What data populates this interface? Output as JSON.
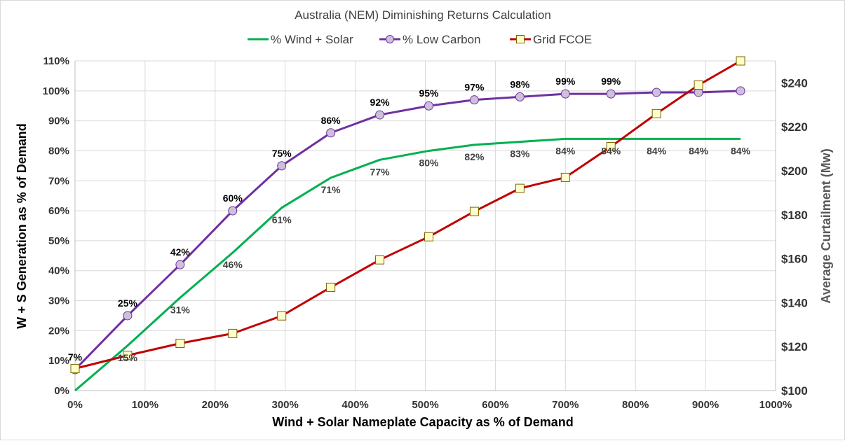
{
  "chart_data": {
    "type": "line",
    "title": "Australia (NEM) Diminishing Returns Calculation",
    "xlabel": "Wind + Solar Nameplate Capacity as % of Demand",
    "ylabel": "W + S Generation as % of Demand",
    "y2label": "Average Curtailment (Mw)",
    "xlim": [
      0,
      1000
    ],
    "ylim": [
      0,
      110
    ],
    "y2lim": [
      100,
      250
    ],
    "x_ticks": [
      "0%",
      "100%",
      "200%",
      "300%",
      "400%",
      "500%",
      "600%",
      "700%",
      "800%",
      "900%",
      "1000%"
    ],
    "y_ticks": [
      "0%",
      "10%",
      "20%",
      "30%",
      "40%",
      "50%",
      "60%",
      "70%",
      "80%",
      "90%",
      "100%",
      "110%"
    ],
    "y2_ticks": [
      "$100",
      "$120",
      "$140",
      "$160",
      "$180",
      "$200",
      "$220",
      "$240"
    ],
    "legend": [
      "% Wind + Solar",
      "% Low Carbon",
      "Grid FCOE"
    ],
    "colors": {
      "wind_solar": "#00b050",
      "low_carbon": "#7030a0",
      "low_carbon_marker": "#ccc0da",
      "fcoe": "#c00000",
      "fcoe_marker": "#ffffcc",
      "grid": "#d9d9d9"
    },
    "series": [
      {
        "name": "% Wind + Solar",
        "axis": "left",
        "x": [
          0,
          75,
          150,
          225,
          295,
          365,
          435,
          505,
          570,
          635,
          700,
          765,
          830,
          890,
          950
        ],
        "values": [
          0,
          15,
          31,
          46,
          61,
          71,
          77,
          80,
          82,
          83,
          84,
          84,
          84,
          84,
          84
        ],
        "labels": [
          "",
          "15%",
          "31%",
          "46%",
          "61%",
          "71%",
          "77%",
          "80%",
          "82%",
          "83%",
          "84%",
          "84%",
          "84%",
          "84%",
          "84%"
        ]
      },
      {
        "name": "% Low Carbon",
        "axis": "left",
        "x": [
          0,
          75,
          150,
          225,
          295,
          365,
          435,
          505,
          570,
          635,
          700,
          765,
          830,
          890,
          950
        ],
        "values": [
          7,
          25,
          42,
          60,
          75,
          86,
          92,
          95,
          97,
          98,
          99,
          99,
          99.5,
          99.5,
          100
        ],
        "labels": [
          "7%",
          "25%",
          "42%",
          "60%",
          "75%",
          "86%",
          "92%",
          "95%",
          "97%",
          "98%",
          "99%",
          "99%",
          "",
          "",
          ""
        ]
      },
      {
        "name": "Grid FCOE",
        "axis": "right",
        "x": [
          0,
          75,
          150,
          225,
          295,
          365,
          435,
          505,
          570,
          635,
          700,
          765,
          830,
          890,
          950
        ],
        "values": [
          110,
          116,
          121.5,
          126,
          134,
          147,
          159.5,
          170,
          181.5,
          192,
          197,
          211,
          226,
          239,
          250
        ]
      }
    ]
  }
}
